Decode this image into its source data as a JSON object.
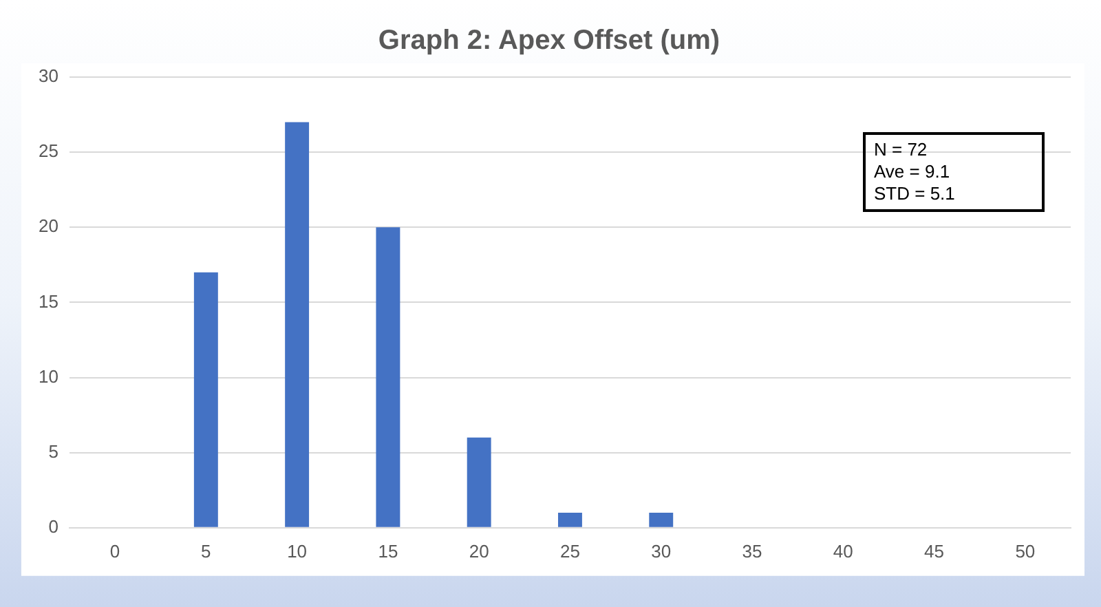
{
  "chart_data": {
    "type": "bar",
    "title": "Graph 2: Apex Offset (um)",
    "categories": [
      "0",
      "5",
      "10",
      "15",
      "20",
      "25",
      "30",
      "35",
      "40",
      "45",
      "50"
    ],
    "values": [
      0,
      17,
      27,
      20,
      6,
      1,
      1,
      0,
      0,
      0,
      0
    ],
    "color": "#4472c4",
    "ylim": [
      0,
      30
    ],
    "yticks": [
      0,
      5,
      10,
      15,
      20,
      25,
      30
    ],
    "grid": "y",
    "annotations": [
      "N = 72",
      "Ave = 9.1",
      "STD = 5.1"
    ]
  }
}
